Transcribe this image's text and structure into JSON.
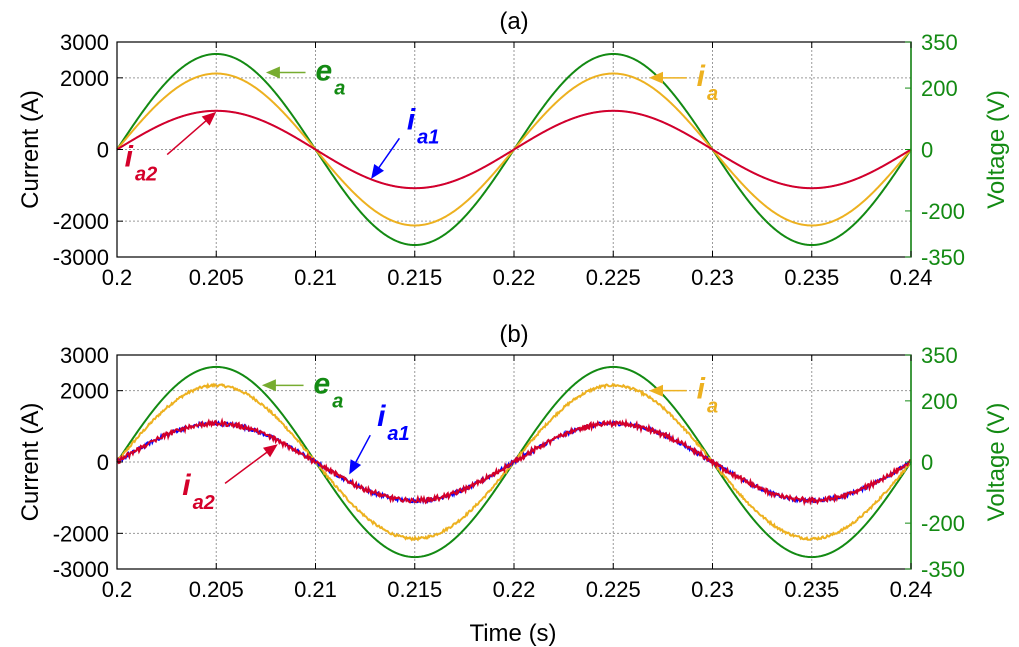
{
  "colors": {
    "e_a": "#138a13",
    "i_a": "#edb120",
    "i_a1": "#0000ff",
    "i_a2": "#d4002a",
    "e_a_arrow": "#77ac30",
    "grid": "#9a9a9a",
    "axis": "#000000",
    "right_axis": "#138a13"
  },
  "xlabel": "Time (s)",
  "chart_data": [
    {
      "type": "line",
      "title": "(a)",
      "xlabel": "",
      "ylabel": "Current (A)",
      "y2label": "Voltage (V)",
      "xlim": [
        0.2,
        0.24
      ],
      "ylim": [
        -3000,
        3000
      ],
      "y2lim": [
        -350,
        350
      ],
      "xticks": [
        "0.2",
        "0.205",
        "0.21",
        "0.215",
        "0.22",
        "0.225",
        "0.23",
        "0.235",
        "0.24"
      ],
      "yticks": [
        "3000",
        "2000",
        "0",
        "-2000",
        "-3000"
      ],
      "y2ticks": [
        "350",
        "200",
        "0",
        "-200",
        "-350"
      ],
      "grid": true,
      "frequency_hz": 50,
      "noise": "none",
      "series": [
        {
          "name": "e",
          "sub": "a",
          "axis": "right",
          "amplitude": 311,
          "color_key": "e_a"
        },
        {
          "name": "i",
          "sub": "a",
          "axis": "left",
          "amplitude": 2120,
          "color_key": "i_a"
        },
        {
          "name": "i",
          "sub": "a1",
          "axis": "left",
          "amplitude": 1080,
          "color_key": "i_a1"
        },
        {
          "name": "i",
          "sub": "a2",
          "axis": "left",
          "amplitude": 1080,
          "color_key": "i_a2"
        }
      ],
      "annotations": [
        {
          "main": "e",
          "sub": "a",
          "color_key": "e_a",
          "arrow_key": "e_a_arrow",
          "target": [
            0.2075,
            2150
          ],
          "text_at": [
            0.2098,
            2150
          ]
        },
        {
          "main": "i",
          "sub": "a",
          "color_key": "i_a",
          "arrow_key": "i_a",
          "target": [
            0.2268,
            2000
          ],
          "text_at": [
            0.229,
            2000
          ]
        },
        {
          "main": "i",
          "sub": "a1",
          "color_key": "i_a1",
          "arrow_key": "i_a1",
          "target": [
            0.2128,
            -820
          ],
          "text_at": [
            0.2144,
            450
          ]
        },
        {
          "main": "i",
          "sub": "a2",
          "color_key": "i_a2",
          "arrow_key": "i_a2",
          "target": [
            0.205,
            1050
          ],
          "text_at": [
            0.2023,
            -250
          ]
        }
      ]
    },
    {
      "type": "line",
      "title": "(b)",
      "xlabel": "Time (s)",
      "ylabel": "Current (A)",
      "y2label": "Voltage (V)",
      "xlim": [
        0.2,
        0.24
      ],
      "ylim": [
        -3000,
        3000
      ],
      "y2lim": [
        -350,
        350
      ],
      "xticks": [
        "0.2",
        "0.205",
        "0.21",
        "0.215",
        "0.22",
        "0.225",
        "0.23",
        "0.235",
        "0.24"
      ],
      "yticks": [
        "3000",
        "2000",
        "0",
        "-2000",
        "-3000"
      ],
      "y2ticks": [
        "350",
        "200",
        "0",
        "-200",
        "-350"
      ],
      "grid": true,
      "frequency_hz": 50,
      "noise": "ripple",
      "series": [
        {
          "name": "e",
          "sub": "a",
          "axis": "right",
          "amplitude": 311,
          "color_key": "e_a"
        },
        {
          "name": "i",
          "sub": "a",
          "axis": "left",
          "amplitude": 2150,
          "color_key": "i_a"
        },
        {
          "name": "i",
          "sub": "a1",
          "axis": "left",
          "amplitude": 1080,
          "color_key": "i_a1"
        },
        {
          "name": "i",
          "sub": "a2",
          "axis": "left",
          "amplitude": 1080,
          "color_key": "i_a2"
        }
      ],
      "annotations": [
        {
          "main": "e",
          "sub": "a",
          "color_key": "e_a",
          "arrow_key": "e_a_arrow",
          "target": [
            0.2073,
            2150
          ],
          "text_at": [
            0.2097,
            2150
          ]
        },
        {
          "main": "i",
          "sub": "a",
          "color_key": "i_a",
          "arrow_key": "i_a",
          "target": [
            0.2268,
            2000
          ],
          "text_at": [
            0.229,
            2000
          ]
        },
        {
          "main": "i",
          "sub": "a1",
          "color_key": "i_a1",
          "arrow_key": "i_a1",
          "target": [
            0.2117,
            -350
          ],
          "text_at": [
            0.2129,
            900
          ]
        },
        {
          "main": "i",
          "sub": "a2",
          "color_key": "i_a2",
          "arrow_key": "i_a2",
          "target": [
            0.2081,
            500
          ],
          "text_at": [
            0.2052,
            -700
          ]
        }
      ]
    }
  ]
}
